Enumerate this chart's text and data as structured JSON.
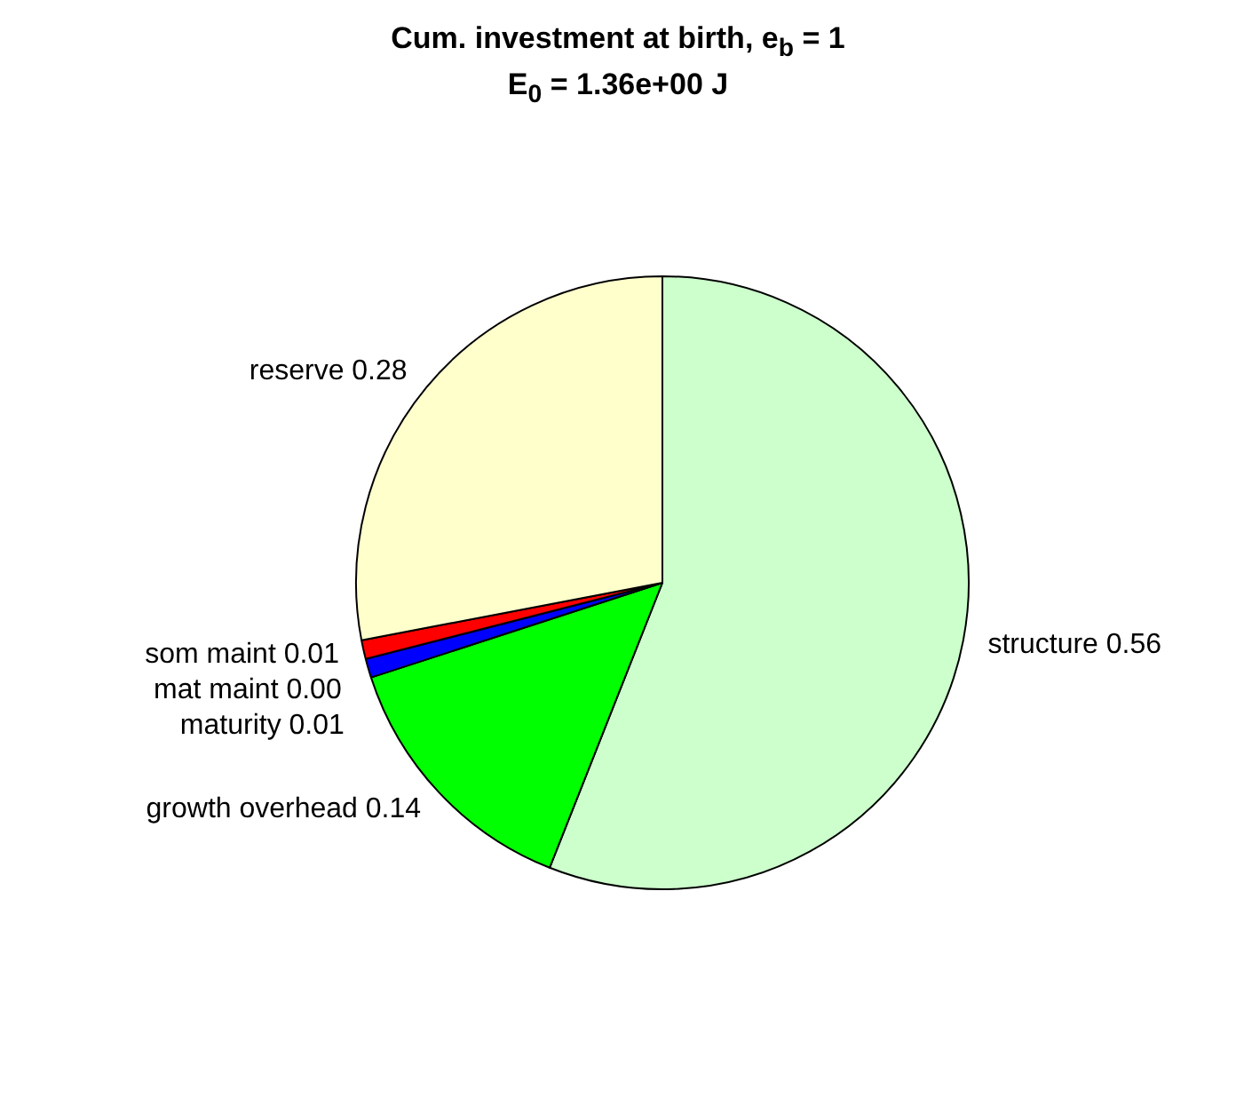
{
  "chart_data": {
    "type": "pie",
    "title": "Cum. investment at birth, e$_{b}$ = 1",
    "subtitle": "E$_{0}$ = 1.36e+00 J",
    "categories": [
      "structure",
      "growth overhead",
      "maturity",
      "mat maint",
      "som maint",
      "reserve"
    ],
    "values": [
      0.56,
      0.14,
      0.01,
      0.0,
      0.01,
      0.28
    ],
    "value_labels": [
      "0.56",
      "0.14",
      "0.01",
      "0.00",
      "0.01",
      "0.28"
    ],
    "colors": [
      "#ccffcc",
      "#00ff00",
      "#0000ff",
      "#ff00ff",
      "#ff0000",
      "#ffffcc"
    ],
    "legend": false
  }
}
